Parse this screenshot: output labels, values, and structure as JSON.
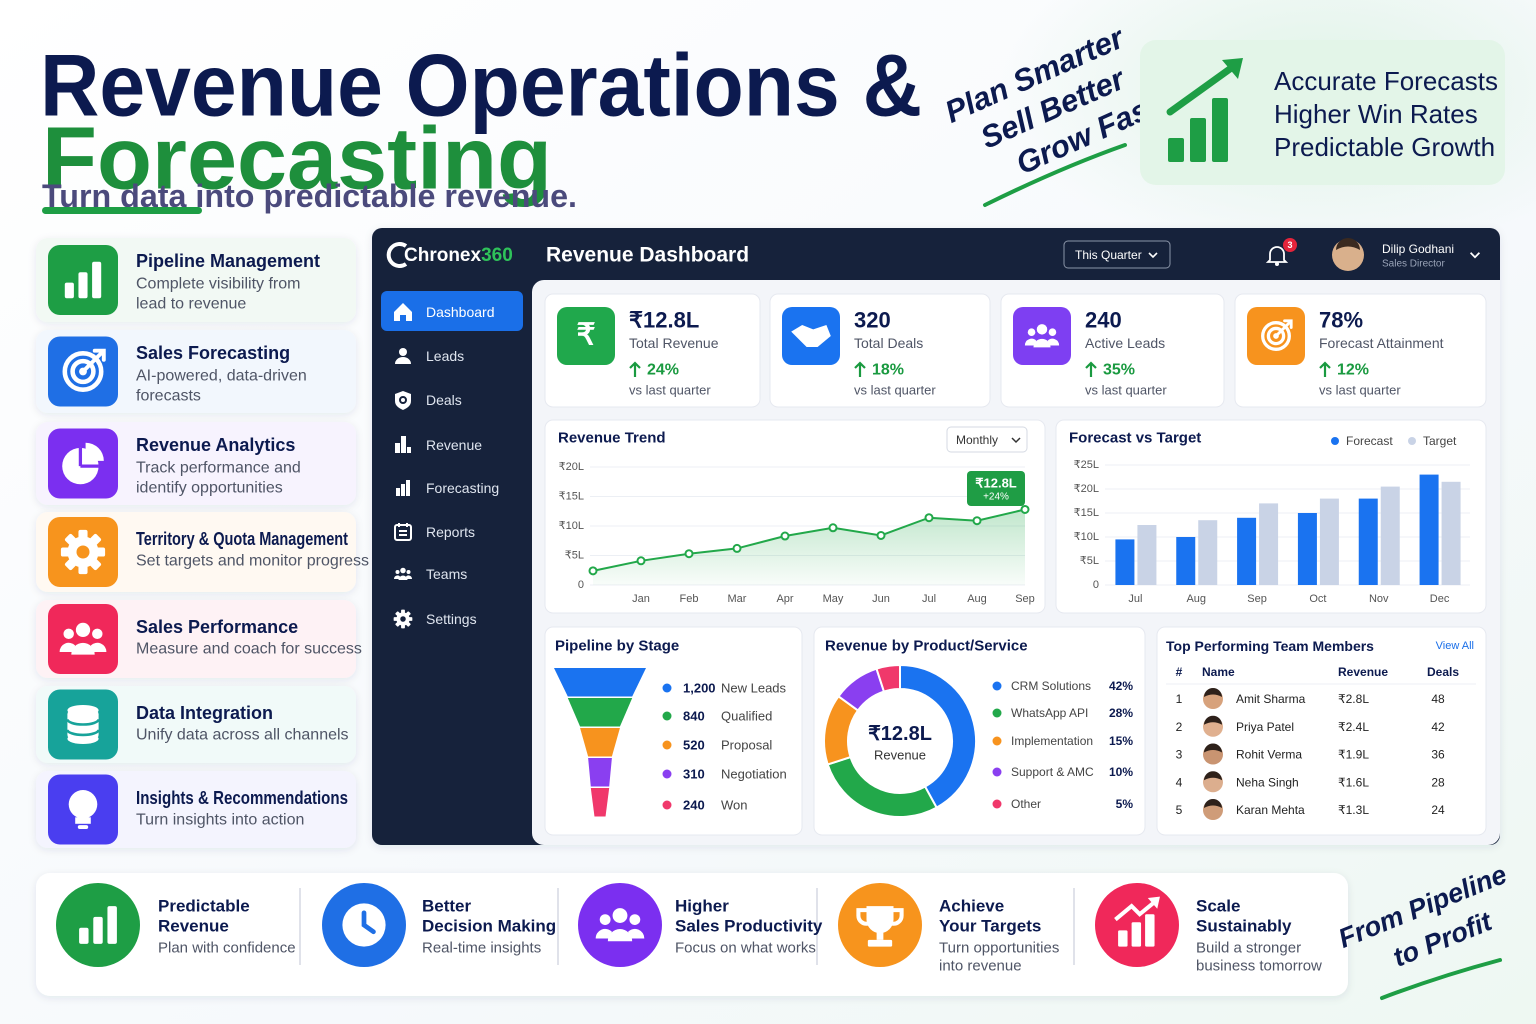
{
  "header": {
    "title_line1": "Revenue Operations &",
    "title_line2": "Forecasting",
    "subtitle": "Turn data into predictable revenue.",
    "tagline": [
      "Plan Smarter",
      "Sell Better",
      "Grow Faster"
    ],
    "highlights": [
      "Accurate Forecasts",
      "Higher Win Rates",
      "Predictable Growth"
    ]
  },
  "features": [
    {
      "title": "Pipeline Management",
      "desc": [
        "Complete visibility from",
        "lead to revenue"
      ],
      "color": "#1e9e45"
    },
    {
      "title": "Sales Forecasting",
      "desc": [
        "AI-powered, data-driven",
        "forecasts"
      ],
      "color": "#1f6fe5"
    },
    {
      "title": "Revenue Analytics",
      "desc": [
        "Track performance and",
        "identify opportunities"
      ],
      "color": "#7b2ff0"
    },
    {
      "title": "Territory & Quota Management",
      "desc": [
        "Set targets and monitor progress"
      ],
      "color": "#f7941d"
    },
    {
      "title": "Sales Performance",
      "desc": [
        "Measure and coach for success"
      ],
      "color": "#f0285a"
    },
    {
      "title": "Data Integration",
      "desc": [
        "Unify data across all channels"
      ],
      "color": "#17a39a"
    },
    {
      "title": "Insights & Recommendations",
      "desc": [
        "Turn insights into action"
      ],
      "color": "#4a3ef0"
    }
  ],
  "dashboard": {
    "brand_name": "Chronex",
    "brand_suffix": "360",
    "title": "Revenue Dashboard",
    "period": "This Quarter",
    "notifications": "3",
    "user": {
      "name": "Dilip Godhani",
      "role": "Sales Director"
    },
    "nav": [
      "Dashboard",
      "Leads",
      "Deals",
      "Revenue",
      "Forecasting",
      "Reports",
      "Teams",
      "Settings"
    ],
    "kpis": [
      {
        "icon": "₹",
        "value": "₹12.8L",
        "label": "Total Revenue",
        "change": "24%",
        "note": "vs last quarter",
        "color": "#20a84c"
      },
      {
        "value": "320",
        "label": "Total Deals",
        "change": "18%",
        "note": "vs last quarter",
        "color": "#1a73f0"
      },
      {
        "value": "240",
        "label": "Active Leads",
        "change": "35%",
        "note": "vs last quarter",
        "color": "#7e3ff2"
      },
      {
        "value": "78%",
        "label": "Forecast Attainment",
        "change": "12%",
        "note": "vs last quarter",
        "color": "#f7931e"
      }
    ],
    "revenue_trend": {
      "type": "line",
      "title": "Revenue Trend",
      "control": "Monthly",
      "categories": [
        null,
        "Jan",
        "Feb",
        "Mar",
        "Apr",
        "May",
        "Jun",
        "Jul",
        "Aug",
        "Sep"
      ],
      "values": [
        2.4,
        4.1,
        5.3,
        6.2,
        8.3,
        9.7,
        8.4,
        11.4,
        10.9,
        12.8
      ],
      "color": "#22a84a",
      "ylim": [
        0,
        20
      ],
      "yticks": [
        0,
        {
          "value": 5,
          "label": "₹5L"
        },
        {
          "value": 10,
          "label": "₹10L"
        },
        {
          "value": 15,
          "label": "₹15L"
        },
        {
          "value": 20,
          "label": "₹20L"
        }
      ],
      "grid": true,
      "annotation": {
        "value": "₹12.8L",
        "change": "+24%"
      }
    },
    "forecast_vs_target": {
      "type": "bar",
      "title": "Forecast vs Target",
      "categories": [
        "Jul",
        "Aug",
        "Sep",
        "Oct",
        "Nov",
        "Dec"
      ],
      "series": [
        {
          "name": "Forecast",
          "color": "#1a73f0",
          "values": [
            9.5,
            10,
            14,
            15,
            18,
            23
          ]
        },
        {
          "name": "Target",
          "color": "#c9d3e6",
          "values": [
            12.5,
            13.5,
            17,
            18,
            20.5,
            21.5
          ]
        }
      ],
      "ylim": [
        0,
        25
      ],
      "yticks": [
        0,
        {
          "value": 5,
          "label": "₹5L"
        },
        {
          "value": 10,
          "label": "₹10L"
        },
        {
          "value": 15,
          "label": "₹15L"
        },
        {
          "value": 20,
          "label": "₹20L"
        },
        {
          "value": 25,
          "label": "₹25L"
        }
      ],
      "grid": true
    },
    "pipeline": {
      "type": "funnel",
      "title": "Pipeline by Stage",
      "categories": [
        "New Leads",
        "Qualified",
        "Proposal",
        "Negotiation",
        "Won"
      ],
      "values": [
        1200,
        840,
        520,
        310,
        240
      ],
      "value_labels": [
        "1,200",
        "840",
        "520",
        "310",
        "240"
      ],
      "colors": [
        "#1a73f0",
        "#22a84a",
        "#f7931e",
        "#8a3ff0",
        "#f0386b"
      ]
    },
    "revenue_mix": {
      "type": "pie",
      "title": "Revenue by Product/Service",
      "center_value": "₹12.8L",
      "center_label": "Revenue",
      "categories": [
        "CRM Solutions",
        "WhatsApp API",
        "Implementation",
        "Support & AMC",
        "Other"
      ],
      "values": [
        42,
        28,
        15,
        10,
        5
      ],
      "value_labels": [
        "42%",
        "28%",
        "15%",
        "10%",
        "5%"
      ],
      "colors": [
        "#1a73f0",
        "#22a84a",
        "#f7931e",
        "#8a3ff0",
        "#f0386b"
      ]
    },
    "team": {
      "title": "Top Performing Team Members",
      "link": "View All",
      "columns": [
        "#",
        "Name",
        "Revenue",
        "Deals"
      ],
      "rows": [
        [
          "1",
          "Amit Sharma",
          "₹2.8L",
          "48"
        ],
        [
          "2",
          "Priya Patel",
          "₹2.4L",
          "42"
        ],
        [
          "3",
          "Rohit Verma",
          "₹1.9L",
          "36"
        ],
        [
          "4",
          "Neha Singh",
          "₹1.6L",
          "28"
        ],
        [
          "5",
          "Karan Mehta",
          "₹1.3L",
          "24"
        ]
      ]
    }
  },
  "benefits": [
    {
      "title": [
        "Predictable",
        "Revenue"
      ],
      "desc": [
        "Plan with confidence"
      ],
      "color": "#1e9e45"
    },
    {
      "title": [
        "Better",
        "Decision Making"
      ],
      "desc": [
        "Real-time insights"
      ],
      "color": "#1f6fe5"
    },
    {
      "title": [
        "Higher",
        "Sales Productivity"
      ],
      "desc": [
        "Focus on what works"
      ],
      "color": "#7b2ff0"
    },
    {
      "title": [
        "Achieve",
        "Your Targets"
      ],
      "desc": [
        "Turn opportunities",
        "into revenue"
      ],
      "color": "#f7941d"
    },
    {
      "title": [
        "Scale",
        "Sustainably"
      ],
      "desc": [
        "Build a stronger",
        "business tomorrow"
      ],
      "color": "#f0285a"
    }
  ],
  "closing": [
    "From Pipeline",
    "to Profit"
  ]
}
